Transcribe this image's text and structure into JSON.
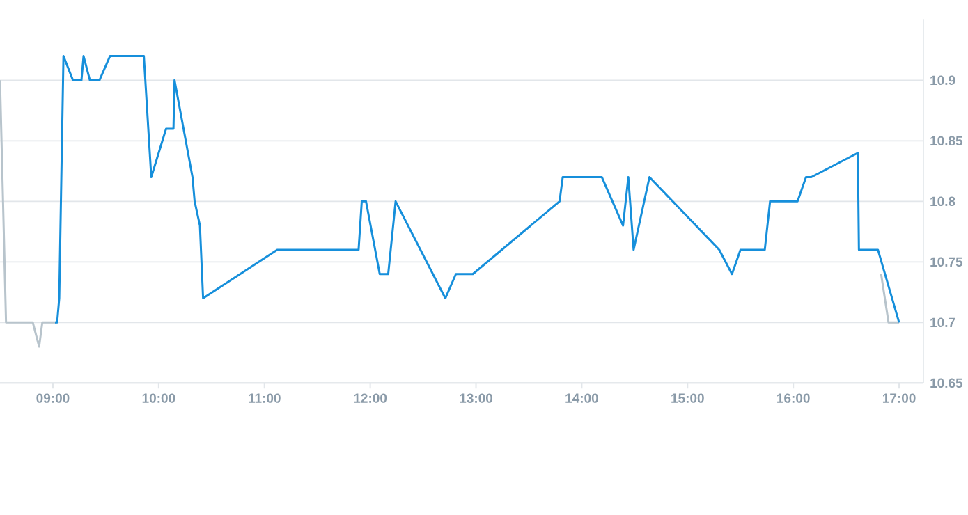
{
  "chart_data": {
    "type": "line",
    "xlim": [
      8.5,
      17.23
    ],
    "ylim": [
      10.65,
      10.95
    ],
    "xticks": [
      {
        "value": 9,
        "label": "09:00"
      },
      {
        "value": 10,
        "label": "10:00"
      },
      {
        "value": 11,
        "label": "11:00"
      },
      {
        "value": 12,
        "label": "12:00"
      },
      {
        "value": 13,
        "label": "13:00"
      },
      {
        "value": 14,
        "label": "14:00"
      },
      {
        "value": 15,
        "label": "15:00"
      },
      {
        "value": 16,
        "label": "16:00"
      },
      {
        "value": 17,
        "label": "17:00"
      }
    ],
    "yticks": [
      10.65,
      10.7,
      10.75,
      10.8,
      10.85,
      10.9
    ],
    "grid": "y",
    "series": [
      {
        "color": "#b8c4cc",
        "x": [
          8.5,
          8.557,
          8.81,
          8.87,
          8.9,
          9.03,
          null,
          16.83,
          16.9,
          17.0
        ],
        "values": [
          10.9,
          10.7,
          10.7,
          10.68,
          10.7,
          10.7,
          null,
          10.74,
          10.7,
          10.7
        ]
      },
      {
        "color": "#168fdb",
        "x": [
          9.02,
          9.04,
          9.06,
          9.1,
          9.19,
          9.27,
          9.29,
          9.35,
          9.44,
          9.54,
          9.86,
          9.93,
          10.07,
          10.14,
          10.15,
          10.32,
          10.34,
          10.39,
          10.42,
          11.12,
          11.89,
          11.92,
          11.96,
          12.09,
          12.17,
          12.24,
          12.71,
          12.81,
          12.97,
          13.79,
          13.82,
          14.19,
          14.39,
          14.44,
          14.49,
          14.64,
          15.3,
          15.42,
          15.5,
          15.73,
          15.78,
          16.04,
          16.12,
          16.17,
          16.61,
          16.62,
          16.8,
          17.0
        ],
        "values": [
          10.7,
          10.7,
          10.72,
          10.92,
          10.9,
          10.9,
          10.92,
          10.9,
          10.9,
          10.92,
          10.92,
          10.82,
          10.86,
          10.86,
          10.9,
          10.82,
          10.8,
          10.78,
          10.72,
          10.76,
          10.76,
          10.8,
          10.8,
          10.74,
          10.74,
          10.8,
          10.72,
          10.74,
          10.74,
          10.8,
          10.82,
          10.82,
          10.78,
          10.82,
          10.76,
          10.82,
          10.76,
          10.74,
          10.76,
          10.76,
          10.8,
          10.8,
          10.82,
          10.82,
          10.84,
          10.76,
          10.76,
          10.7
        ]
      }
    ]
  }
}
